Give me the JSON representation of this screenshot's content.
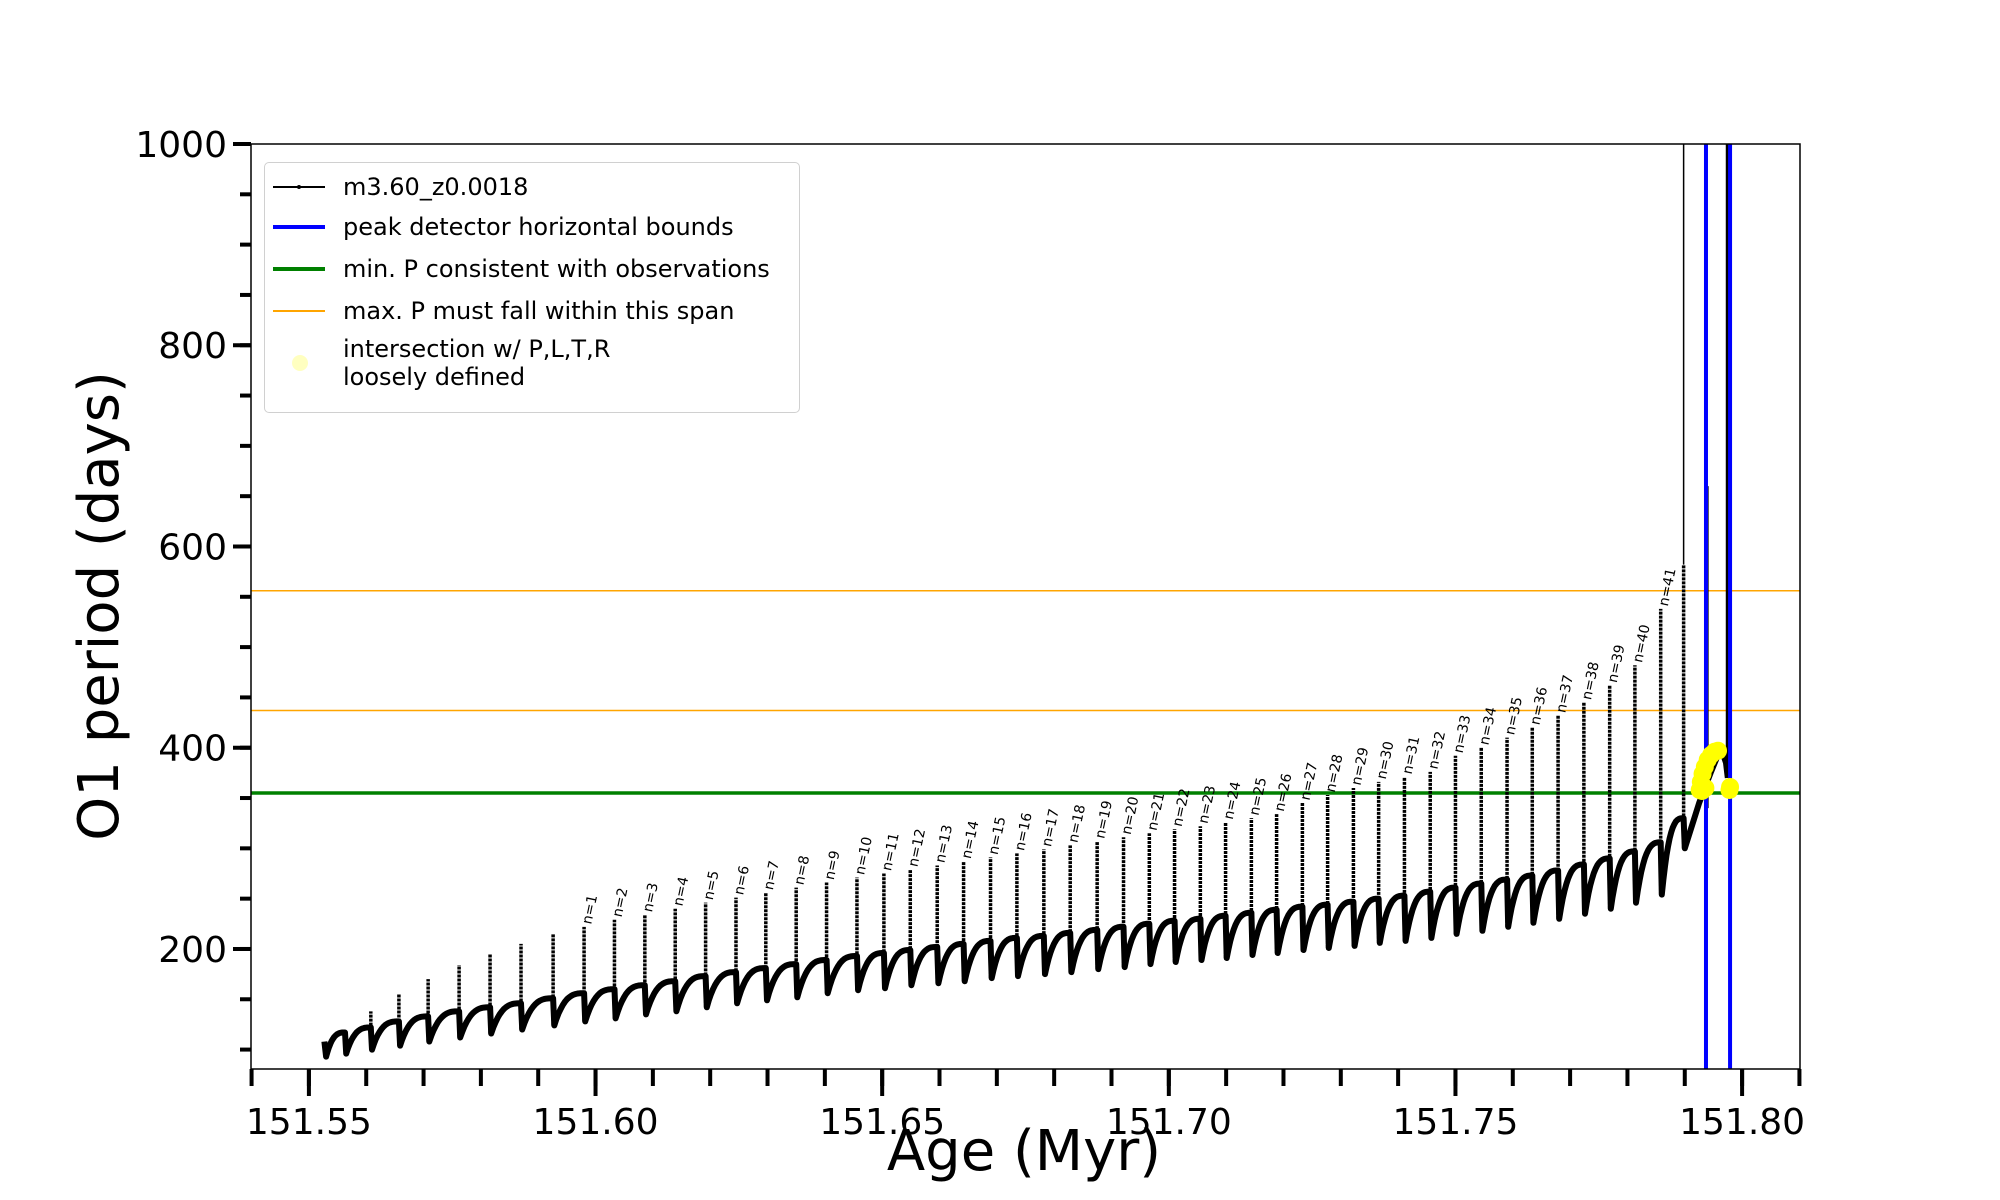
{
  "chart_data": {
    "type": "line",
    "xlabel": "Age (Myr)",
    "ylabel": "O1 period (days)",
    "xlim": [
      151.5399,
      151.8101
    ],
    "ylim": [
      80.7,
      1000
    ],
    "x_ticks": [
      "151.55",
      "151.60",
      "151.65",
      "151.70",
      "151.75",
      "151.80"
    ],
    "x_tick_values": [
      151.55,
      151.6,
      151.65,
      151.7,
      151.75,
      151.8
    ],
    "x_minor_step": 0.01,
    "y_ticks": [
      "200",
      "400",
      "600",
      "800",
      "1000"
    ],
    "y_tick_values": [
      200,
      400,
      600,
      800,
      1000
    ],
    "y_minor_step": 50,
    "grid": false,
    "legend_position": "top-left",
    "legend": [
      {
        "label": "m3.60_z0.0018",
        "color": "#000000",
        "kind": "line-marker"
      },
      {
        "label": "peak detector horizontal bounds",
        "color": "#0000ff",
        "kind": "line"
      },
      {
        "label": "min. P consistent with observations",
        "color": "#008000",
        "kind": "line"
      },
      {
        "label": "max. P must fall within this span",
        "color": "#ffa500",
        "kind": "line"
      },
      {
        "label": "intersection w/ P,L,T,R\nloosely defined",
        "label_lines": [
          "intersection w/ P,L,T,R",
          "loosely defined"
        ],
        "color": "#ffff00",
        "kind": "dot"
      }
    ],
    "series": {
      "name": "m3.60_z0.0018",
      "color": "#000000",
      "start": [
        151.5527,
        108
      ],
      "pulses_columns": [
        "age",
        "plateau",
        "peak",
        "dip",
        "label"
      ],
      "pulses": [
        [
          151.5563,
          117,
          119,
          96,
          ""
        ],
        [
          151.5608,
          122,
          138,
          100,
          ""
        ],
        [
          151.5657,
          128,
          155,
          104,
          ""
        ],
        [
          151.5708,
          133,
          170,
          108,
          ""
        ],
        [
          151.5762,
          138,
          184,
          112,
          ""
        ],
        [
          151.5816,
          142,
          195,
          116,
          ""
        ],
        [
          151.587,
          146,
          205,
          120,
          ""
        ],
        [
          151.5926,
          151,
          215,
          124,
          ""
        ],
        [
          151.598,
          156,
          222,
          128,
          "n=1"
        ],
        [
          151.6033,
          160,
          229,
          131,
          "n=2"
        ],
        [
          151.6086,
          164,
          234,
          135,
          "n=3"
        ],
        [
          151.6139,
          168,
          240,
          138,
          "n=4"
        ],
        [
          151.6192,
          173,
          246,
          142,
          "n=5"
        ],
        [
          151.6245,
          177,
          251,
          146,
          "n=6"
        ],
        [
          151.6297,
          181,
          256,
          149,
          "n=7"
        ],
        [
          151.635,
          185,
          261,
          152,
          "n=8"
        ],
        [
          151.6403,
          189,
          266,
          156,
          "n=9"
        ],
        [
          151.6456,
          193,
          271,
          159,
          "n=10"
        ],
        [
          151.6503,
          196,
          275,
          161,
          "n=11"
        ],
        [
          151.6549,
          199,
          279,
          164,
          "n=12"
        ],
        [
          151.6596,
          202,
          283,
          166,
          "n=13"
        ],
        [
          151.6642,
          205,
          287,
          168,
          "n=14"
        ],
        [
          151.6689,
          208,
          291,
          171,
          "n=15"
        ],
        [
          151.6735,
          211,
          295,
          173,
          "n=16"
        ],
        [
          151.6782,
          213,
          299,
          175,
          "n=17"
        ],
        [
          151.6828,
          216,
          303,
          177,
          "n=18"
        ],
        [
          151.6875,
          219,
          307,
          180,
          "n=19"
        ],
        [
          151.6921,
          222,
          311,
          182,
          "n=20"
        ],
        [
          151.6966,
          225,
          315,
          185,
          "n=21"
        ],
        [
          151.701,
          228,
          319,
          187,
          "n=22"
        ],
        [
          151.7055,
          230,
          322,
          189,
          "n=23"
        ],
        [
          151.7099,
          233,
          326,
          191,
          "n=24"
        ],
        [
          151.7144,
          236,
          330,
          194,
          "n=25"
        ],
        [
          151.7188,
          239,
          334,
          196,
          "n=26"
        ],
        [
          151.7233,
          242,
          345,
          199,
          "n=27"
        ],
        [
          151.7277,
          244,
          353,
          201,
          "n=28"
        ],
        [
          151.7322,
          247,
          360,
          203,
          "n=29"
        ],
        [
          151.7366,
          250,
          366,
          206,
          "n=30"
        ],
        [
          151.7411,
          253,
          371,
          208,
          "n=31"
        ],
        [
          151.7456,
          257,
          376,
          211,
          "n=32"
        ],
        [
          151.75,
          261,
          392,
          215,
          "n=33"
        ],
        [
          151.7545,
          265,
          400,
          218,
          "n=34"
        ],
        [
          151.759,
          269,
          410,
          222,
          "n=35"
        ],
        [
          151.7634,
          273,
          420,
          226,
          "n=36"
        ],
        [
          151.7679,
          278,
          432,
          230,
          "n=37"
        ],
        [
          151.7724,
          284,
          445,
          235,
          "n=38"
        ],
        [
          151.7769,
          290,
          462,
          240,
          "n=39"
        ],
        [
          151.7813,
          297,
          482,
          246,
          "n=40"
        ],
        [
          151.7858,
          306,
          538,
          254,
          "n=41"
        ],
        [
          151.7898,
          330,
          582,
          300,
          ""
        ]
      ],
      "tail": [
        [
          151.7925,
          345
        ],
        [
          151.7945,
          375
        ],
        [
          151.7963,
          400
        ],
        [
          151.7972,
          385
        ],
        [
          151.7975,
          370
        ]
      ],
      "vertical_excursions": [
        [
          151.7898,
          582,
          1000
        ],
        [
          151.7939,
          340,
          660
        ],
        [
          151.7975,
          370,
          1000
        ]
      ]
    },
    "hlines": [
      {
        "name": "min. P consistent with observations",
        "y": 355,
        "color": "#008000"
      },
      {
        "name": "max. P must fall within this span",
        "y": 556,
        "color": "#ffa500"
      },
      {
        "name": "max. P must fall within this span",
        "y": 437,
        "color": "#ffa500"
      }
    ],
    "vlines": [
      {
        "name": "peak detector horizontal bounds",
        "x": 151.7937,
        "color": "#0000ff"
      },
      {
        "name": "peak detector horizontal bounds",
        "x": 151.7979,
        "color": "#0000ff"
      }
    ],
    "intersection_points": [
      [
        151.7926,
        358
      ],
      [
        151.7928,
        366
      ],
      [
        151.7931,
        374
      ],
      [
        151.7935,
        381
      ],
      [
        151.794,
        388
      ],
      [
        151.7946,
        393
      ],
      [
        151.7952,
        396
      ],
      [
        151.7958,
        397
      ],
      [
        151.793,
        357
      ],
      [
        151.7936,
        360
      ],
      [
        151.7979,
        361
      ],
      [
        151.7978,
        358
      ]
    ]
  }
}
